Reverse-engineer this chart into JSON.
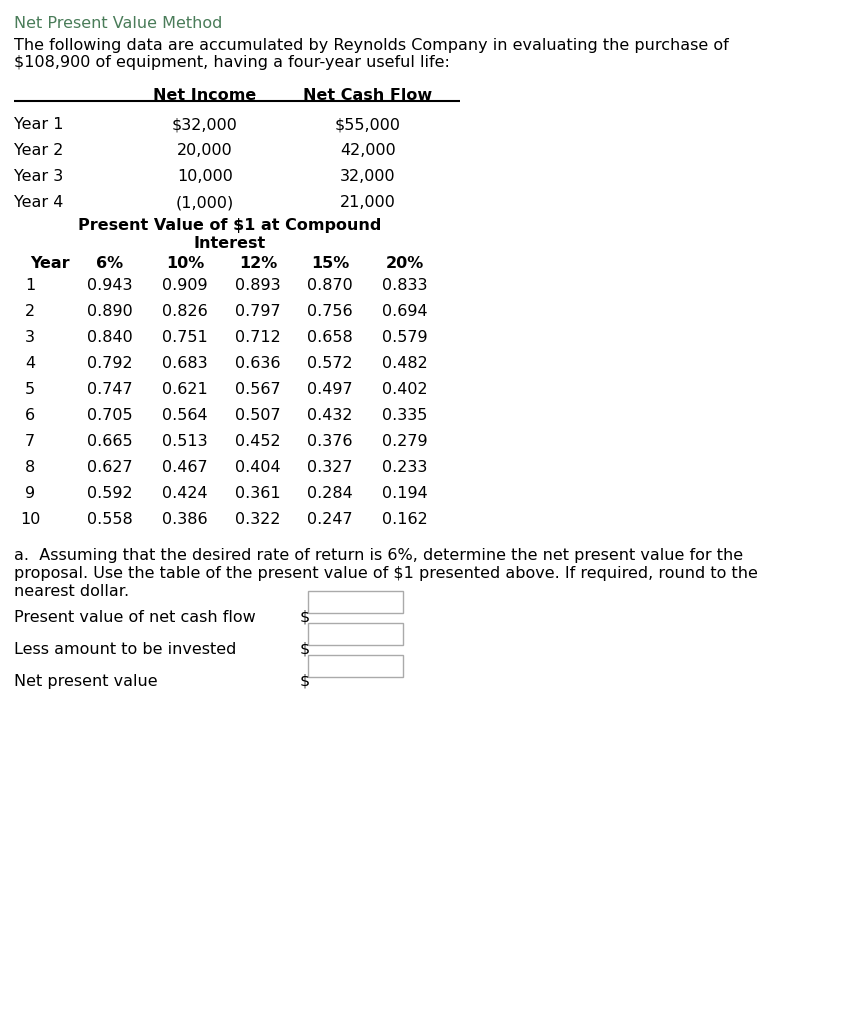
{
  "title": "Net Present Value Method",
  "title_color": "#4a7c59",
  "intro_line1": "The following data are accumulated by Reynolds Company in evaluating the purchase of",
  "intro_line2": "$108,900 of equipment, having a four-year useful life:",
  "top_table_headers": [
    "",
    "Net Income",
    "Net Cash Flow"
  ],
  "top_table_rows": [
    [
      "Year 1",
      "$32,000",
      "$55,000"
    ],
    [
      "Year 2",
      "20,000",
      "42,000"
    ],
    [
      "Year 3",
      "10,000",
      "32,000"
    ],
    [
      "Year 4",
      "(1,000)",
      "21,000"
    ]
  ],
  "pv_table_title_line1": "Present Value of $1 at Compound",
  "pv_table_title_line2": "Interest",
  "pv_table_headers": [
    "Year",
    "6%",
    "10%",
    "12%",
    "15%",
    "20%"
  ],
  "pv_table_rows": [
    [
      "1",
      "0.943",
      "0.909",
      "0.893",
      "0.870",
      "0.833"
    ],
    [
      "2",
      "0.890",
      "0.826",
      "0.797",
      "0.756",
      "0.694"
    ],
    [
      "3",
      "0.840",
      "0.751",
      "0.712",
      "0.658",
      "0.579"
    ],
    [
      "4",
      "0.792",
      "0.683",
      "0.636",
      "0.572",
      "0.482"
    ],
    [
      "5",
      "0.747",
      "0.621",
      "0.567",
      "0.497",
      "0.402"
    ],
    [
      "6",
      "0.705",
      "0.564",
      "0.507",
      "0.432",
      "0.335"
    ],
    [
      "7",
      "0.665",
      "0.513",
      "0.452",
      "0.376",
      "0.279"
    ],
    [
      "8",
      "0.627",
      "0.467",
      "0.404",
      "0.327",
      "0.233"
    ],
    [
      "9",
      "0.592",
      "0.424",
      "0.361",
      "0.284",
      "0.194"
    ],
    [
      "10",
      "0.558",
      "0.386",
      "0.322",
      "0.247",
      "0.162"
    ]
  ],
  "question_line1": "a.  Assuming that the desired rate of return is 6%, determine the net present value for the",
  "question_line2": "proposal. Use the table of the present value of $1 presented above. If required, round to the",
  "question_line3": "nearest dollar.",
  "answer_labels": [
    "Present value of net cash flow",
    "Less amount to be invested",
    "Net present value"
  ],
  "answer_prefix": "$",
  "bg_color": "#ffffff",
  "text_color": "#000000",
  "line_color": "#000000",
  "box_edge_color": "#aaaaaa"
}
